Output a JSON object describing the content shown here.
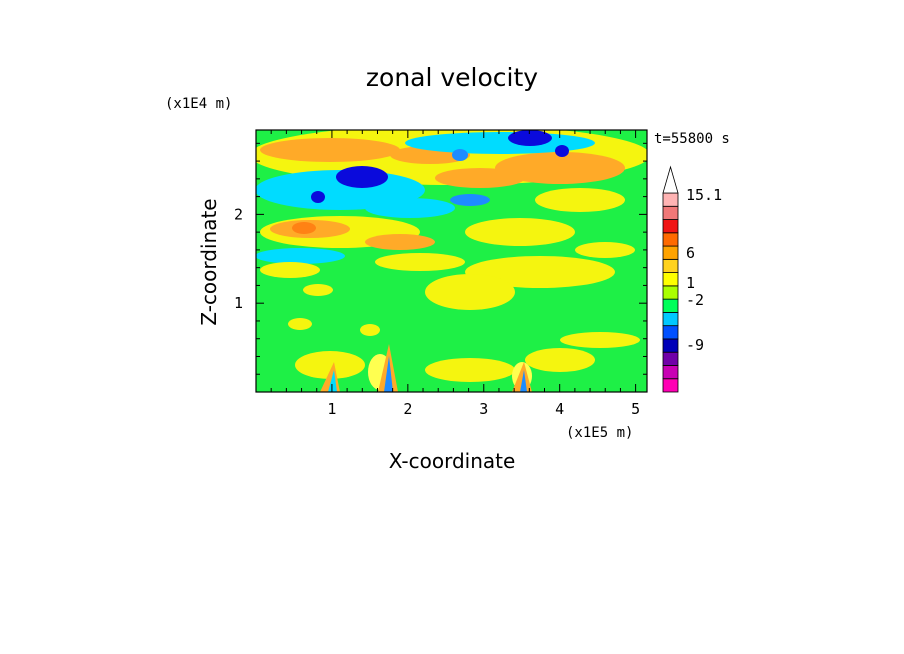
{
  "chart_data": {
    "type": "heatmap",
    "title": "zonal velocity",
    "xlabel": "X-coordinate",
    "ylabel": "Z-coordinate",
    "x_unit": "(x1E5 m)",
    "y_unit": "(x1E4 m)",
    "time_label": "t=55800 s",
    "xlim": [
      0,
      5.15
    ],
    "ylim": [
      0,
      2.95
    ],
    "x_ticks": [
      1,
      2,
      3,
      4,
      5
    ],
    "y_ticks": [
      1,
      2
    ],
    "colorbar": {
      "ticks": [
        {
          "value": 15.1,
          "label": "15.1"
        },
        {
          "value": 6,
          "label": "6"
        },
        {
          "value": 1,
          "label": "1"
        },
        {
          "value": -2,
          "label": "-2"
        },
        {
          "value": -9,
          "label": "-9"
        }
      ],
      "levels": [
        {
          "color": "#ff00b4"
        },
        {
          "color": "#c800b4"
        },
        {
          "color": "#7000a8"
        },
        {
          "color": "#0000b8"
        },
        {
          "color": "#0050ff"
        },
        {
          "color": "#00c8ff"
        },
        {
          "color": "#00ff5a"
        },
        {
          "color": "#aaff00"
        },
        {
          "color": "#ffff00"
        },
        {
          "color": "#ffd21e"
        },
        {
          "color": "#ffa300"
        },
        {
          "color": "#ff6a00"
        },
        {
          "color": "#f01414"
        },
        {
          "color": "#f07878"
        },
        {
          "color": "#ffb4b4"
        },
        {
          "color": "#ffffff"
        }
      ]
    },
    "palette": {
      "green": "#1ef046",
      "yellow": "#f5f50f",
      "light_yellow": "#ffff50",
      "orange": "#ffaa28",
      "dark_orange": "#ff8214",
      "cyan": "#00dcff",
      "light_blue": "#1e8cff",
      "blue": "#0a0adc",
      "navy": "#00008c"
    }
  }
}
